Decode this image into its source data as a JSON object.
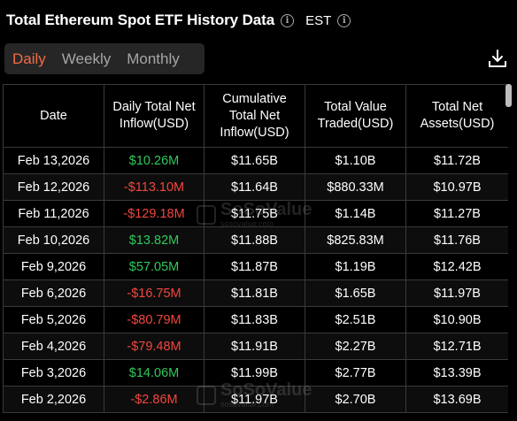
{
  "header": {
    "title": "Total Ethereum Spot ETF History Data",
    "timezone": "EST"
  },
  "tabs": [
    {
      "label": "Daily",
      "active": true
    },
    {
      "label": "Weekly",
      "active": false
    },
    {
      "label": "Monthly",
      "active": false
    }
  ],
  "table": {
    "columns": [
      "Date",
      "Daily Total Net Inflow(USD)",
      "Cumulative Total Net Inflow(USD)",
      "Total Value Traded(USD)",
      "Total Net Assets(USD)"
    ],
    "rows": [
      {
        "date": "Feb 13,2026",
        "inflow": "$10.26M",
        "cumulative": "$11.65B",
        "traded": "$1.10B",
        "assets": "$11.72B"
      },
      {
        "date": "Feb 12,2026",
        "inflow": "-$113.10M",
        "cumulative": "$11.64B",
        "traded": "$880.33M",
        "assets": "$10.97B"
      },
      {
        "date": "Feb 11,2026",
        "inflow": "-$129.18M",
        "cumulative": "$11.75B",
        "traded": "$1.14B",
        "assets": "$11.27B"
      },
      {
        "date": "Feb 10,2026",
        "inflow": "$13.82M",
        "cumulative": "$11.88B",
        "traded": "$825.83M",
        "assets": "$11.76B"
      },
      {
        "date": "Feb 9,2026",
        "inflow": "$57.05M",
        "cumulative": "$11.87B",
        "traded": "$1.19B",
        "assets": "$12.42B"
      },
      {
        "date": "Feb 6,2026",
        "inflow": "-$16.75M",
        "cumulative": "$11.81B",
        "traded": "$1.65B",
        "assets": "$11.97B"
      },
      {
        "date": "Feb 5,2026",
        "inflow": "-$80.79M",
        "cumulative": "$11.83B",
        "traded": "$2.51B",
        "assets": "$10.90B"
      },
      {
        "date": "Feb 4,2026",
        "inflow": "-$79.48M",
        "cumulative": "$11.91B",
        "traded": "$2.27B",
        "assets": "$12.71B"
      },
      {
        "date": "Feb 3,2026",
        "inflow": "$14.06M",
        "cumulative": "$11.99B",
        "traded": "$2.77B",
        "assets": "$13.39B"
      },
      {
        "date": "Feb 2,2026",
        "inflow": "-$2.86M",
        "cumulative": "$11.97B",
        "traded": "$2.70B",
        "assets": "$13.69B"
      }
    ]
  },
  "watermark": {
    "text": "SoSoValue",
    "subtext": "sosovalue.com"
  },
  "colors": {
    "accent": "#f26b46",
    "positive": "#2fc95a",
    "negative": "#f0463f",
    "background": "#000000"
  },
  "icons": {
    "info": "info-icon",
    "download": "download-icon"
  }
}
